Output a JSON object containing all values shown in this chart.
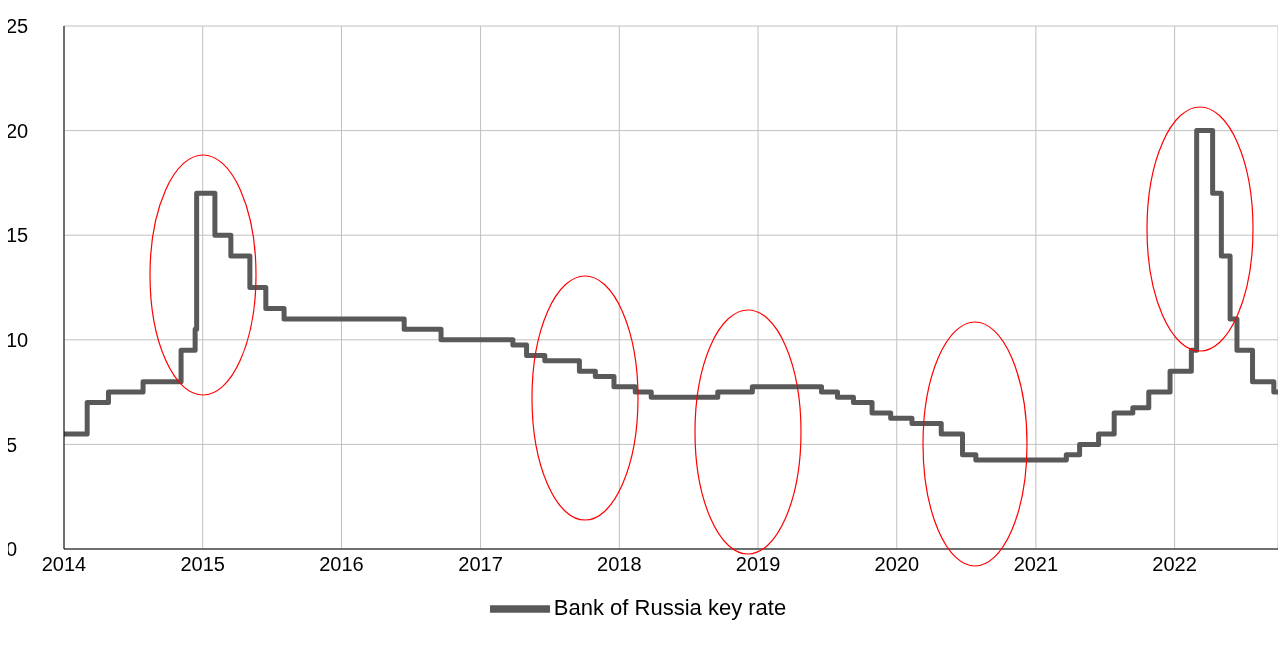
{
  "chart_data": {
    "type": "step",
    "x": [
      "2014-01-01",
      "2014-03-03",
      "2014-04-28",
      "2014-07-28",
      "2014-11-05",
      "2014-12-12",
      "2014-12-16",
      "2015-02-02",
      "2015-03-16",
      "2015-05-05",
      "2015-06-16",
      "2015-08-03",
      "2016-06-14",
      "2016-09-19",
      "2017-03-27",
      "2017-05-02",
      "2017-06-19",
      "2017-09-18",
      "2017-10-30",
      "2017-12-18",
      "2018-02-12",
      "2018-03-26",
      "2018-09-17",
      "2018-12-17",
      "2019-06-17",
      "2019-07-29",
      "2019-09-09",
      "2019-10-28",
      "2019-12-16",
      "2020-02-10",
      "2020-04-27",
      "2020-06-22",
      "2020-07-27",
      "2021-03-22",
      "2021-04-26",
      "2021-06-15",
      "2021-07-26",
      "2021-09-13",
      "2021-10-25",
      "2021-12-20",
      "2022-02-14",
      "2022-02-28",
      "2022-04-11",
      "2022-05-04",
      "2022-05-27",
      "2022-06-14",
      "2022-07-25",
      "2022-09-19",
      "2022-09-30"
    ],
    "series": [
      {
        "name": "Bank of Russia key rate",
        "color": "#595959",
        "values": [
          5.5,
          7,
          7.5,
          8,
          9.5,
          10.5,
          17,
          15,
          14,
          12.5,
          11.5,
          11,
          10.5,
          10,
          9.75,
          9.25,
          9,
          8.5,
          8.25,
          7.75,
          7.5,
          7.25,
          7.5,
          7.75,
          7.5,
          7.25,
          7,
          6.5,
          6.25,
          6,
          5.5,
          4.5,
          4.25,
          4.5,
          5,
          5.5,
          6.5,
          6.75,
          7.5,
          8.5,
          9.5,
          20,
          17,
          14,
          11,
          9.5,
          8,
          7.5,
          7.5
        ]
      }
    ],
    "xlim": [
      "2014-01-01",
      "2022-09-30"
    ],
    "xticks": [
      "2014",
      "2015",
      "2016",
      "2017",
      "2018",
      "2019",
      "2020",
      "2021",
      "2022"
    ],
    "ylim": [
      0,
      25
    ],
    "yticks": [
      0,
      5,
      10,
      15,
      20,
      25
    ],
    "grid": true,
    "legend": "bottom"
  }
}
